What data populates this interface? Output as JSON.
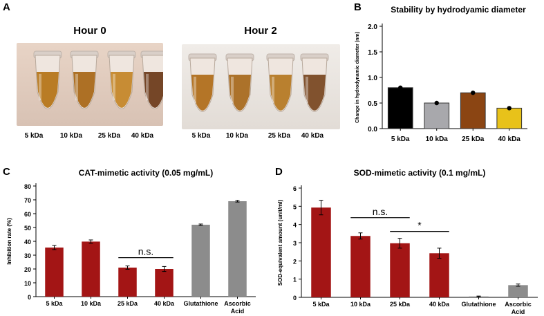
{
  "panels": {
    "A": {
      "letter": "A",
      "photos": [
        {
          "title": "Hour 0",
          "tube_labels": [
            "5 kDa",
            "10 kDa",
            "25 kDa",
            "40 kDa"
          ],
          "tube_colors": [
            "#b5761a",
            "#a9691a",
            "#c4872a",
            "#6e3d1c"
          ]
        },
        {
          "title": "Hour 2",
          "tube_labels": [
            "5 kDa",
            "10 kDa",
            "25 kDa",
            "40 kDa"
          ],
          "tube_colors": [
            "#b06f1c",
            "#a86b20",
            "#b57a25",
            "#7a4a24"
          ]
        }
      ]
    },
    "B": {
      "letter": "B"
    },
    "C": {
      "letter": "C"
    },
    "D": {
      "letter": "D"
    }
  },
  "chart_data": [
    {
      "id": "B",
      "type": "bar",
      "title": "Stability by hydrodyamic diameter",
      "ylabel": "Change in hydrodynamic diameter (nm)",
      "xlabel": "",
      "categories": [
        "5 kDa",
        "10 kDa",
        "25 kDa",
        "40 kDa"
      ],
      "values": [
        0.8,
        0.5,
        0.7,
        0.4
      ],
      "points": [
        0.8,
        0.5,
        0.7,
        0.4
      ],
      "colors": [
        "#000000",
        "#a8a8ac",
        "#8b4513",
        "#e8c21a"
      ],
      "ylim": [
        0,
        2.0
      ],
      "yticks": [
        "0.0",
        "0.5",
        "1.0",
        "1.5",
        "2.0"
      ]
    },
    {
      "id": "C",
      "type": "bar",
      "title": "CAT-mimetic activity (0.05 mg/mL)",
      "ylabel": "Inhibition rate (%)",
      "xlabel": "",
      "categories": [
        "5 kDa",
        "10 kDa",
        "25 kDa",
        "40 kDa",
        "Glutathione",
        "Ascorbic Acid"
      ],
      "values": [
        35.5,
        39.8,
        21.0,
        20.0,
        52.0,
        69.0
      ],
      "errors": [
        1.5,
        1.2,
        1.2,
        1.8,
        0.5,
        0.6
      ],
      "colors": [
        "#a31515",
        "#a31515",
        "#a31515",
        "#a31515",
        "#8c8c8c",
        "#8c8c8c"
      ],
      "ylim": [
        0,
        80
      ],
      "yticks": [
        "0",
        "10",
        "20",
        "30",
        "40",
        "50",
        "60",
        "70",
        "80"
      ],
      "annotations": [
        {
          "text": "n.s.",
          "from": 2,
          "to": 3
        }
      ]
    },
    {
      "id": "D",
      "type": "bar",
      "title": "SOD-mimetic activity (0.1 mg/mL)",
      "ylabel": "SOD-equivalent amount (unit/ml)",
      "xlabel": "",
      "categories": [
        "5 kDa",
        "10 kDa",
        "25 kDa",
        "40 kDa",
        "Glutathione",
        "Ascorbic Acid"
      ],
      "values": [
        4.93,
        3.37,
        2.97,
        2.42,
        0.05,
        0.67
      ],
      "errors": [
        0.4,
        0.17,
        0.27,
        0.28,
        0.02,
        0.06
      ],
      "colors": [
        "#a31515",
        "#a31515",
        "#a31515",
        "#a31515",
        "#8c8c8c",
        "#8c8c8c"
      ],
      "ylim": [
        0,
        6
      ],
      "yticks": [
        "0",
        "1",
        "2",
        "3",
        "4",
        "5",
        "6"
      ],
      "annotations": [
        {
          "text": "n.s.",
          "from": 1,
          "to": 2
        },
        {
          "text": "*",
          "from": 2,
          "to": 3
        }
      ]
    }
  ]
}
